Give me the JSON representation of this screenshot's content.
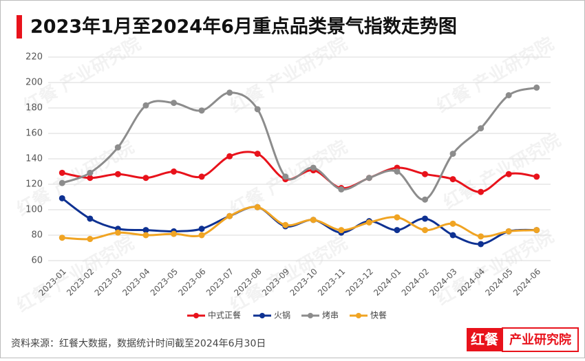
{
  "chart_data": {
    "type": "line",
    "title": "2023年1月至2024年6月重点品类景气指数走势图",
    "source": "资料来源：红餐大数据，数据统计时间截至2024年6月30日",
    "watermark": "红餐 产业研究院",
    "logo": {
      "brand": "红餐",
      "name": "产业研究院"
    },
    "categories": [
      "2023-01",
      "2023-02",
      "2023-03",
      "2023-04",
      "2023-05",
      "2023-06",
      "2023-07",
      "2023-08",
      "2023-09",
      "2023-10",
      "2023-11",
      "2023-12",
      "2024-01",
      "2024-02",
      "2024-03",
      "2024-04",
      "2024-05",
      "2024-06"
    ],
    "series": [
      {
        "name": "中式正餐",
        "color": "#e8121b",
        "values": [
          129,
          125,
          128,
          125,
          130,
          126,
          142,
          144,
          124,
          131,
          117,
          125,
          133,
          128,
          124,
          114,
          128,
          126
        ]
      },
      {
        "name": "火锅",
        "color": "#0e3192",
        "values": [
          109,
          93,
          85,
          84,
          83,
          85,
          95,
          102,
          87,
          92,
          82,
          91,
          84,
          93,
          80,
          73,
          83,
          84
        ]
      },
      {
        "name": "烤串",
        "color": "#8c8c8c",
        "values": [
          121,
          129,
          149,
          182,
          184,
          178,
          192,
          179,
          126,
          133,
          116,
          125,
          130,
          108,
          144,
          164,
          190,
          196
        ]
      },
      {
        "name": "快餐",
        "color": "#f0a423",
        "values": [
          78,
          77,
          82,
          80,
          81,
          80,
          95,
          102,
          88,
          92,
          84,
          90,
          94,
          84,
          89,
          79,
          83,
          84
        ]
      }
    ],
    "ylim": [
      60,
      220
    ],
    "yticks": [
      60,
      80,
      100,
      120,
      140,
      160,
      180,
      200,
      220
    ],
    "grid": true,
    "smooth": true,
    "legend": "bottom"
  }
}
